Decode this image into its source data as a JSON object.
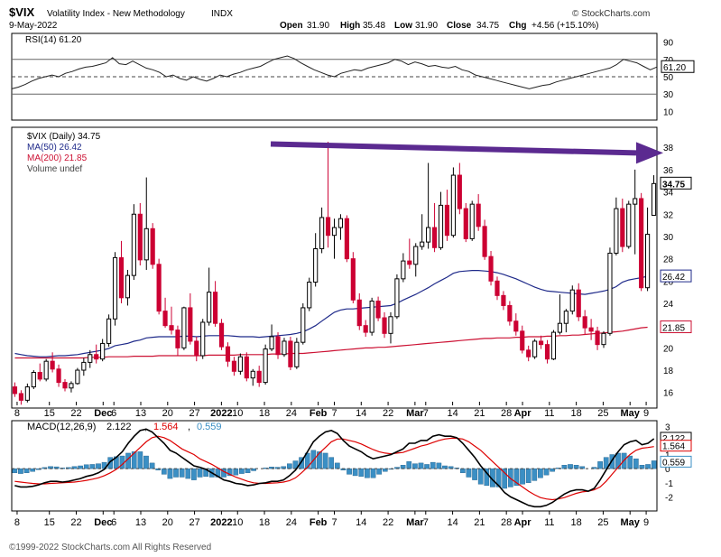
{
  "header": {
    "symbol": "$VIX",
    "name": "Volatility Index - New Methodology",
    "exchange": "INDX",
    "date": "9-May-2022",
    "open_label": "Open",
    "open": "31.90",
    "high_label": "High",
    "high": "35.48",
    "low_label": "Low",
    "low": "31.90",
    "close_label": "Close",
    "close": "34.75",
    "chg_label": "Chg",
    "chg": "+4.56 (+15.10%)",
    "brand": "© StockCharts.com"
  },
  "footer": "©1999-2022 StockCharts.com All Rights Reserved",
  "colors": {
    "up": "#000000",
    "down": "#cc0033",
    "ma50": "#1f2a8a",
    "ma200": "#cc1133",
    "arrow": "#5b2a90",
    "macd_line": "#000000",
    "signal_line": "#dd0000",
    "histogram": "#3b8fc4"
  },
  "chart_data": [
    {
      "type": "line",
      "panel": "RSI",
      "legend": "RSI(14) 61.20",
      "yticks": [
        10,
        30,
        50,
        70,
        90
      ],
      "reference_lines": [
        30,
        50,
        70
      ],
      "ylim": [
        0,
        100
      ],
      "last_value": "61.20",
      "values": [
        36,
        38,
        41,
        45,
        48,
        50,
        52,
        50,
        54,
        56,
        59,
        61,
        62,
        64,
        66,
        72,
        65,
        64,
        68,
        64,
        60,
        58,
        55,
        50,
        52,
        48,
        46,
        50,
        47,
        45,
        48,
        52,
        50,
        53,
        55,
        58,
        60,
        62,
        66,
        70,
        72,
        74,
        71,
        66,
        62,
        58,
        55,
        52,
        50,
        54,
        56,
        58,
        57,
        60,
        62,
        64,
        66,
        70,
        68,
        64,
        67,
        65,
        62,
        63,
        61,
        60,
        62,
        58,
        56,
        52,
        50,
        48,
        46,
        44,
        42,
        40,
        38,
        36,
        38,
        40,
        41,
        44,
        46,
        48,
        50,
        52,
        54,
        56,
        58,
        60,
        64,
        70,
        68,
        66,
        62,
        58,
        61.2
      ]
    },
    {
      "type": "candlestick",
      "panel": "Price",
      "legend": {
        "title": "$VIX (Daily) 34.75",
        "ma50": "MA(50) 26.42",
        "ma200": "MA(200) 21.85",
        "volume": "Volume undef"
      },
      "yticks": [
        16,
        18,
        20,
        22,
        24,
        26,
        28,
        30,
        32,
        34,
        36,
        38
      ],
      "ylim": [
        14.6,
        39.8
      ],
      "xticks": [
        "8",
        "15",
        "22",
        "Dec",
        "6",
        "13",
        "20",
        "27",
        "2022",
        "10",
        "18",
        "24",
        "Feb",
        "7",
        "14",
        "22",
        "Mar",
        "7",
        "14",
        "21",
        "28",
        "Apr",
        "11",
        "18",
        "25",
        "May",
        "9"
      ],
      "last_close": "34.75",
      "ma50_last": "26.42",
      "ma200_last": "21.85",
      "candles": [
        [
          16.5,
          16.9,
          15.6,
          15.9
        ],
        [
          15.9,
          16.2,
          14.9,
          15.3
        ],
        [
          15.3,
          16.8,
          15.1,
          16.5
        ],
        [
          16.5,
          18.0,
          16.3,
          17.8
        ],
        [
          17.8,
          18.6,
          17.0,
          17.2
        ],
        [
          17.2,
          19.0,
          17.0,
          18.8
        ],
        [
          18.8,
          19.6,
          17.8,
          18.1
        ],
        [
          18.1,
          18.5,
          16.5,
          16.9
        ],
        [
          16.9,
          17.2,
          16.1,
          16.4
        ],
        [
          16.4,
          17.0,
          16.0,
          16.8
        ],
        [
          16.8,
          18.2,
          16.7,
          18.0
        ],
        [
          18.0,
          19.1,
          17.5,
          18.7
        ],
        [
          18.7,
          19.8,
          18.2,
          19.4
        ],
        [
          19.4,
          20.3,
          18.6,
          19.0
        ],
        [
          19.0,
          20.8,
          18.8,
          20.4
        ],
        [
          20.4,
          23.0,
          20.1,
          22.6
        ],
        [
          22.6,
          28.6,
          22.0,
          28.1
        ],
        [
          28.1,
          29.6,
          24.0,
          24.5
        ],
        [
          24.5,
          27.0,
          23.8,
          26.5
        ],
        [
          26.5,
          32.9,
          26.1,
          32.0
        ],
        [
          32.0,
          33.0,
          27.4,
          27.9
        ],
        [
          27.9,
          35.3,
          27.0,
          30.7
        ],
        [
          30.7,
          31.2,
          27.1,
          27.5
        ],
        [
          27.5,
          28.0,
          23.0,
          23.3
        ],
        [
          23.3,
          24.5,
          21.8,
          22.0
        ],
        [
          22.0,
          23.7,
          21.2,
          21.6
        ],
        [
          21.6,
          22.0,
          19.3,
          20.0
        ],
        [
          20.0,
          23.7,
          19.8,
          23.6
        ],
        [
          23.6,
          24.9,
          20.3,
          20.6
        ],
        [
          20.6,
          21.0,
          18.8,
          19.3
        ],
        [
          19.3,
          22.6,
          19.0,
          22.3
        ],
        [
          22.3,
          27.2,
          22.0,
          25.0
        ],
        [
          25.0,
          26.0,
          21.9,
          22.2
        ],
        [
          22.2,
          22.6,
          19.8,
          20.1
        ],
        [
          20.1,
          20.5,
          18.3,
          18.8
        ],
        [
          18.8,
          19.2,
          17.5,
          17.9
        ],
        [
          17.9,
          19.5,
          17.6,
          19.2
        ],
        [
          19.2,
          19.6,
          17.0,
          17.3
        ],
        [
          17.3,
          18.1,
          16.6,
          17.9
        ],
        [
          17.9,
          18.4,
          16.5,
          16.9
        ],
        [
          16.9,
          20.3,
          16.7,
          19.9
        ],
        [
          19.9,
          22.1,
          19.7,
          21.0
        ],
        [
          21.0,
          21.4,
          19.0,
          19.4
        ],
        [
          19.4,
          20.9,
          19.2,
          20.6
        ],
        [
          20.6,
          21.0,
          18.0,
          18.3
        ],
        [
          18.3,
          20.9,
          18.1,
          20.5
        ],
        [
          20.5,
          24.0,
          20.3,
          23.6
        ],
        [
          23.6,
          26.3,
          23.3,
          25.9
        ],
        [
          25.9,
          30.3,
          25.5,
          28.9
        ],
        [
          28.9,
          32.6,
          28.5,
          31.7
        ],
        [
          31.7,
          38.5,
          29.0,
          30.1
        ],
        [
          30.1,
          31.6,
          28.0,
          30.8
        ],
        [
          30.8,
          32.0,
          29.7,
          31.6
        ],
        [
          31.6,
          31.9,
          27.7,
          28.0
        ],
        [
          28.0,
          28.6,
          24.0,
          24.3
        ],
        [
          24.3,
          24.9,
          21.6,
          22.0
        ],
        [
          22.0,
          22.5,
          21.0,
          21.4
        ],
        [
          21.4,
          24.5,
          21.1,
          24.2
        ],
        [
          24.2,
          24.6,
          22.4,
          22.7
        ],
        [
          22.7,
          23.2,
          20.9,
          21.3
        ],
        [
          21.3,
          23.2,
          20.4,
          22.8
        ],
        [
          22.8,
          26.6,
          22.6,
          26.2
        ],
        [
          26.2,
          28.5,
          25.9,
          27.8
        ],
        [
          27.8,
          29.8,
          27.1,
          27.5
        ],
        [
          27.5,
          29.4,
          26.4,
          29.1
        ],
        [
          29.1,
          32.0,
          28.8,
          29.5
        ],
        [
          29.5,
          36.6,
          28.9,
          30.8
        ],
        [
          30.8,
          33.0,
          28.6,
          29.0
        ],
        [
          29.0,
          34.0,
          28.8,
          32.8
        ],
        [
          32.8,
          34.2,
          29.6,
          30.1
        ],
        [
          30.1,
          36.2,
          29.9,
          35.5
        ],
        [
          35.5,
          36.6,
          32.0,
          32.5
        ],
        [
          32.5,
          33.0,
          29.5,
          29.8
        ],
        [
          29.8,
          33.2,
          29.6,
          32.9
        ],
        [
          32.9,
          33.8,
          30.5,
          30.9
        ],
        [
          30.9,
          31.5,
          27.9,
          28.2
        ],
        [
          28.2,
          28.7,
          25.6,
          26.0
        ],
        [
          26.0,
          26.4,
          24.3,
          24.7
        ],
        [
          24.7,
          25.1,
          23.4,
          23.8
        ],
        [
          23.8,
          24.2,
          22.0,
          22.4
        ],
        [
          22.4,
          23.1,
          21.1,
          21.5
        ],
        [
          21.5,
          22.0,
          19.5,
          19.8
        ],
        [
          19.8,
          20.2,
          18.8,
          19.2
        ],
        [
          19.2,
          20.8,
          19.0,
          20.6
        ],
        [
          20.6,
          21.1,
          19.9,
          20.3
        ],
        [
          20.3,
          20.7,
          18.6,
          19.0
        ],
        [
          19.0,
          21.6,
          18.9,
          21.4
        ],
        [
          21.4,
          24.8,
          21.2,
          22.2
        ],
        [
          22.2,
          23.5,
          21.4,
          23.3
        ],
        [
          23.3,
          25.6,
          23.0,
          25.2
        ],
        [
          25.2,
          25.8,
          22.4,
          22.8
        ],
        [
          22.8,
          23.4,
          21.2,
          21.8
        ],
        [
          21.8,
          22.6,
          20.7,
          21.5
        ],
        [
          21.5,
          21.9,
          19.8,
          20.3
        ],
        [
          20.3,
          21.5,
          20.0,
          21.3
        ],
        [
          21.3,
          29.0,
          21.1,
          28.5
        ],
        [
          28.5,
          33.5,
          28.3,
          32.5
        ],
        [
          32.5,
          33.4,
          28.6,
          29.1
        ],
        [
          29.1,
          33.2,
          28.9,
          32.9
        ],
        [
          32.9,
          36.0,
          28.4,
          33.4
        ],
        [
          33.4,
          33.9,
          25.1,
          25.4
        ],
        [
          25.4,
          32.6,
          25.1,
          30.2
        ],
        [
          31.9,
          35.5,
          31.9,
          34.75
        ]
      ],
      "ma50": [
        19.5,
        19.4,
        19.3,
        19.25,
        19.2,
        19.2,
        19.25,
        19.3,
        19.3,
        19.35,
        19.4,
        19.5,
        19.6,
        19.7,
        19.8,
        19.95,
        20.2,
        20.3,
        20.4,
        20.6,
        20.7,
        20.9,
        20.95,
        21.0,
        21.0,
        21.0,
        21.0,
        21.05,
        21.05,
        21.0,
        21.05,
        21.1,
        21.1,
        21.1,
        21.1,
        21.05,
        21.0,
        21.0,
        21.0,
        20.95,
        21.0,
        21.05,
        21.1,
        21.15,
        21.2,
        21.3,
        21.45,
        21.7,
        22.0,
        22.4,
        22.8,
        23.2,
        23.4,
        23.5,
        23.5,
        23.55,
        23.6,
        23.65,
        23.7,
        23.75,
        23.8,
        24.0,
        24.3,
        24.55,
        24.8,
        25.1,
        25.4,
        25.75,
        26.05,
        26.35,
        26.7,
        26.85,
        26.9,
        26.95,
        26.95,
        26.9,
        26.85,
        26.75,
        26.6,
        26.4,
        26.2,
        25.95,
        25.7,
        25.45,
        25.25,
        25.1,
        25.05,
        25.0,
        24.95,
        24.9,
        24.85,
        24.8,
        24.9,
        25.0,
        25.1,
        25.25,
        25.5,
        25.9,
        26.1,
        26.2,
        26.3,
        26.42
      ],
      "ma200": [
        19.1,
        19.1,
        19.1,
        19.1,
        19.1,
        19.1,
        19.1,
        19.1,
        19.1,
        19.1,
        19.1,
        19.1,
        19.15,
        19.15,
        19.15,
        19.2,
        19.2,
        19.2,
        19.2,
        19.25,
        19.25,
        19.25,
        19.25,
        19.3,
        19.3,
        19.3,
        19.3,
        19.3,
        19.3,
        19.3,
        19.3,
        19.35,
        19.35,
        19.35,
        19.35,
        19.35,
        19.4,
        19.4,
        19.4,
        19.4,
        19.4,
        19.45,
        19.45,
        19.45,
        19.5,
        19.5,
        19.5,
        19.55,
        19.6,
        19.65,
        19.7,
        19.75,
        19.8,
        19.85,
        19.9,
        19.95,
        20.0,
        20.0,
        20.05,
        20.05,
        20.1,
        20.15,
        20.2,
        20.25,
        20.3,
        20.35,
        20.4,
        20.45,
        20.5,
        20.55,
        20.6,
        20.65,
        20.7,
        20.75,
        20.8,
        20.85,
        20.85,
        20.9,
        20.9,
        20.9,
        20.95,
        20.95,
        21.0,
        21.0,
        21.0,
        21.05,
        21.05,
        21.1,
        21.1,
        21.15,
        21.15,
        21.2,
        21.25,
        21.3,
        21.35,
        21.4,
        21.45,
        21.5,
        21.6,
        21.7,
        21.8,
        21.85
      ]
    },
    {
      "type": "bar",
      "panel": "MACD",
      "legend": {
        "name": "MACD(12,26,9)",
        "macd": "2.122",
        "signal": "1.564",
        "histogram": "0.559"
      },
      "yticks": [
        -2,
        -1,
        0,
        1,
        2,
        3
      ],
      "ylim": [
        -3,
        3.4
      ],
      "macd": [
        -1.2,
        -1.3,
        -1.3,
        -1.25,
        -1.15,
        -1.0,
        -0.9,
        -0.9,
        -0.95,
        -0.9,
        -0.8,
        -0.7,
        -0.55,
        -0.45,
        -0.3,
        -0.05,
        0.5,
        0.8,
        1.2,
        1.8,
        2.3,
        2.7,
        2.8,
        2.6,
        2.2,
        1.8,
        1.3,
        1.1,
        0.8,
        0.5,
        0.2,
        0.1,
        -0.05,
        -0.3,
        -0.55,
        -0.8,
        -0.9,
        -1.05,
        -1.1,
        -1.2,
        -1.15,
        -1.05,
        -1.0,
        -0.9,
        -0.9,
        -0.8,
        -0.5,
        -0.1,
        0.5,
        1.2,
        1.9,
        2.3,
        2.6,
        2.7,
        2.5,
        2.0,
        1.6,
        1.4,
        1.2,
        0.9,
        0.7,
        0.8,
        0.9,
        1.0,
        1.2,
        1.4,
        1.8,
        1.8,
        2.0,
        2.0,
        2.3,
        2.4,
        2.3,
        2.3,
        2.2,
        1.8,
        1.3,
        0.8,
        0.2,
        -0.3,
        -0.8,
        -1.2,
        -1.7,
        -2.0,
        -2.2,
        -2.4,
        -2.6,
        -2.7,
        -2.7,
        -2.6,
        -2.4,
        -2.1,
        -1.8,
        -1.6,
        -1.5,
        -1.5,
        -1.6,
        -1.4,
        -0.8,
        -0.1,
        0.6,
        1.2,
        1.7,
        1.9,
        2.0,
        1.7,
        1.8,
        2.122
      ],
      "signal": [
        -0.9,
        -0.95,
        -1.0,
        -1.05,
        -1.08,
        -1.08,
        -1.05,
        -1.03,
        -1.0,
        -0.98,
        -0.95,
        -0.9,
        -0.83,
        -0.75,
        -0.65,
        -0.5,
        -0.3,
        -0.05,
        0.3,
        0.7,
        1.1,
        1.5,
        1.9,
        2.2,
        2.3,
        2.2,
        2.0,
        1.7,
        1.4,
        1.2,
        1.0,
        0.7,
        0.5,
        0.3,
        0.05,
        -0.2,
        -0.4,
        -0.6,
        -0.75,
        -0.9,
        -1.0,
        -1.05,
        -1.05,
        -1.02,
        -1.0,
        -0.95,
        -0.85,
        -0.65,
        -0.3,
        0.1,
        0.6,
        1.1,
        1.5,
        1.9,
        2.1,
        2.1,
        2.0,
        1.9,
        1.75,
        1.55,
        1.35,
        1.2,
        1.1,
        1.05,
        1.1,
        1.15,
        1.3,
        1.45,
        1.6,
        1.7,
        1.85,
        2.0,
        2.1,
        2.15,
        2.15,
        2.1,
        1.9,
        1.6,
        1.3,
        0.9,
        0.5,
        0.1,
        -0.3,
        -0.7,
        -1.0,
        -1.3,
        -1.6,
        -1.85,
        -2.05,
        -2.15,
        -2.2,
        -2.15,
        -2.05,
        -1.9,
        -1.75,
        -1.65,
        -1.6,
        -1.5,
        -1.3,
        -0.9,
        -0.4,
        0.1,
        0.6,
        1.0,
        1.3,
        1.45,
        1.5,
        1.564
      ]
    }
  ]
}
